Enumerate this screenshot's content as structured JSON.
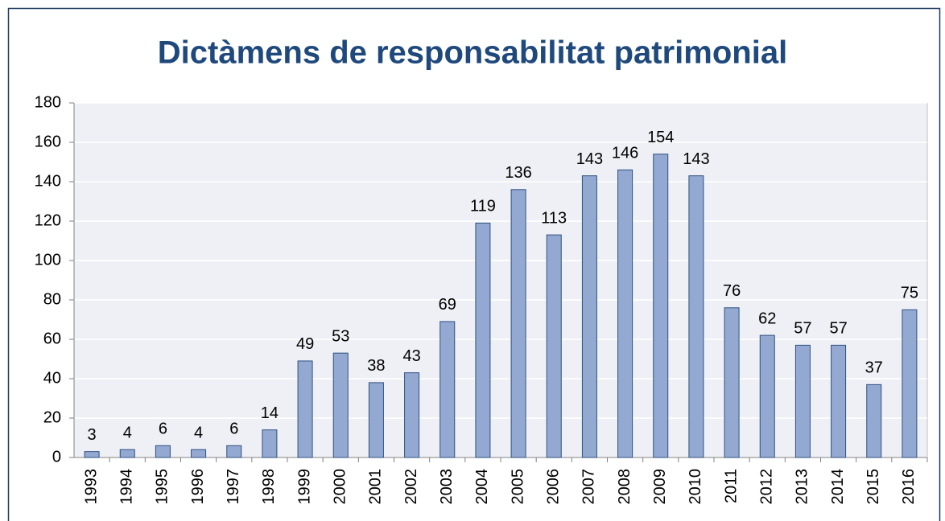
{
  "chart_data": {
    "type": "bar",
    "title": "Dictàmens de responsabilitat patrimonial",
    "categories": [
      "1993",
      "1994",
      "1995",
      "1996",
      "1997",
      "1998",
      "1999",
      "2000",
      "2001",
      "2002",
      "2003",
      "2004",
      "2005",
      "2006",
      "2007",
      "2008",
      "2009",
      "2010",
      "2011",
      "2012",
      "2013",
      "2014",
      "2015",
      "2016"
    ],
    "values": [
      3,
      4,
      6,
      4,
      6,
      14,
      49,
      53,
      38,
      43,
      69,
      119,
      136,
      113,
      143,
      146,
      154,
      143,
      76,
      62,
      57,
      57,
      37,
      75
    ],
    "color": "#94a9d2",
    "ylim": [
      0,
      180
    ],
    "yticks": [
      0,
      20,
      40,
      60,
      80,
      100,
      120,
      140,
      160,
      180
    ],
    "grid": true
  }
}
